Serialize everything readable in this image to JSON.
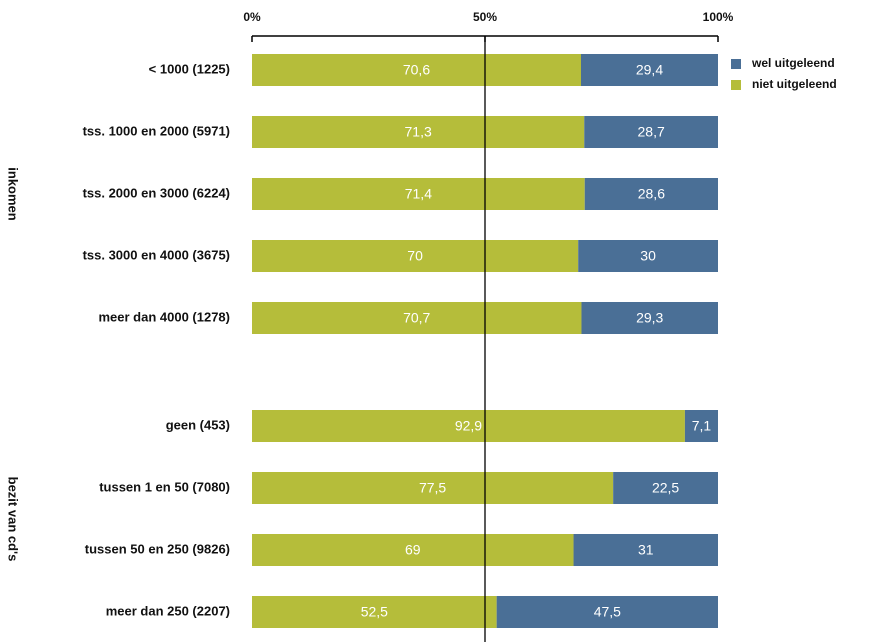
{
  "chart_data": {
    "type": "bar",
    "orientation": "horizontal",
    "stacked": true,
    "xlim": [
      0,
      100
    ],
    "xticks": [
      {
        "value": 0,
        "label": "0%"
      },
      {
        "value": 50,
        "label": "50%"
      },
      {
        "value": 100,
        "label": "100%"
      }
    ],
    "legend": [
      {
        "name": "wel uitgeleend",
        "color": "#4a6f96"
      },
      {
        "name": "niet uitgeleend",
        "color": "#b5bd3a"
      }
    ],
    "groups": [
      {
        "label": "inkomen",
        "categories": [
          "< 1000 (1225)",
          "tss. 1000 en 2000 (5971)",
          "tss. 2000 en 3000 (6224)",
          "tss. 3000 en 4000 (3675)",
          "meer dan 4000 (1278)"
        ],
        "series": [
          {
            "values": [
              29.4,
              28.7,
              28.6,
              30,
              29.3
            ],
            "value_labels": [
              "29,4",
              "28,7",
              "28,6",
              "30",
              "29,3"
            ]
          },
          {
            "values": [
              70.6,
              71.3,
              71.4,
              70,
              70.7
            ],
            "value_labels": [
              "70,6",
              "71,3",
              "71,4",
              "70",
              "70,7"
            ]
          }
        ]
      },
      {
        "label": "bezit van cd's",
        "categories": [
          "geen (453)",
          "tussen 1 en 50 (7080)",
          "tussen 50 en 250 (9826)",
          "meer dan 250 (2207)"
        ],
        "series": [
          {
            "values": [
              7.1,
              22.5,
              31,
              47.5
            ],
            "value_labels": [
              "7,1",
              "22,5",
              "31",
              "47,5"
            ]
          },
          {
            "values": [
              92.9,
              77.5,
              69,
              52.5
            ],
            "value_labels": [
              "92,9",
              "77,5",
              "69",
              "52,5"
            ]
          }
        ]
      }
    ]
  }
}
